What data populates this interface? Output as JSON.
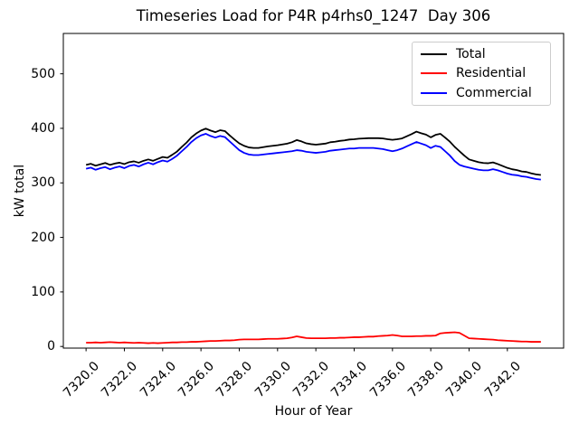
{
  "figure": {
    "background": "#ffffff",
    "axes_color": "#000000"
  },
  "chart_data": {
    "type": "line",
    "title": "Timeseries Load for P4R p4rhs0_1247  Day 306",
    "xlabel": "Hour of Year",
    "ylabel": "kW total",
    "xlim": [
      7318.8125,
      7344.9375
    ],
    "ylim": [
      -3,
      574
    ],
    "grid": false,
    "xticks": {
      "values": [
        7320,
        7322,
        7324,
        7326,
        7328,
        7330,
        7332,
        7334,
        7336,
        7338,
        7340,
        7342
      ],
      "labels": [
        "7320.0",
        "7322.0",
        "7324.0",
        "7326.0",
        "7328.0",
        "7330.0",
        "7332.0",
        "7334.0",
        "7336.0",
        "7338.0",
        "7340.0",
        "7342.0"
      ],
      "rotation": 45
    },
    "yticks": {
      "values": [
        0,
        100,
        200,
        300,
        400,
        500
      ],
      "labels": [
        "0",
        "100",
        "200",
        "300",
        "400",
        "500"
      ]
    },
    "legend": {
      "position": "upper right",
      "edge_color": "#cccccc",
      "entries": [
        "Total",
        "Residential",
        "Commercial"
      ]
    },
    "x": [
      7320.0,
      7320.25,
      7320.5,
      7320.75,
      7321.0,
      7321.25,
      7321.5,
      7321.75,
      7322.0,
      7322.25,
      7322.5,
      7322.75,
      7323.0,
      7323.25,
      7323.5,
      7323.75,
      7324.0,
      7324.25,
      7324.5,
      7324.75,
      7325.0,
      7325.25,
      7325.5,
      7325.75,
      7326.0,
      7326.25,
      7326.5,
      7326.75,
      7327.0,
      7327.25,
      7327.5,
      7327.75,
      7328.0,
      7328.25,
      7328.5,
      7328.75,
      7329.0,
      7329.25,
      7329.5,
      7329.75,
      7330.0,
      7330.25,
      7330.5,
      7330.75,
      7331.0,
      7331.25,
      7331.5,
      7331.75,
      7332.0,
      7332.25,
      7332.5,
      7332.75,
      7333.0,
      7333.25,
      7333.5,
      7333.75,
      7334.0,
      7334.25,
      7334.5,
      7334.75,
      7335.0,
      7335.25,
      7335.5,
      7335.75,
      7336.0,
      7336.25,
      7336.5,
      7336.75,
      7337.0,
      7337.25,
      7337.5,
      7337.75,
      7338.0,
      7338.25,
      7338.5,
      7338.75,
      7339.0,
      7339.25,
      7339.5,
      7339.75,
      7340.0,
      7340.25,
      7340.5,
      7340.75,
      7341.0,
      7341.25,
      7341.5,
      7341.75,
      7342.0,
      7342.25,
      7342.5,
      7342.75,
      7343.0,
      7343.25,
      7343.5,
      7343.75
    ],
    "series": [
      {
        "name": "Total",
        "color": "#000000",
        "values": [
          333,
          335,
          331.5,
          334,
          336.5,
          333,
          335.5,
          337,
          334.5,
          338,
          339.5,
          337,
          340.5,
          343,
          340.5,
          344,
          347.5,
          346,
          351.5,
          357.5,
          366,
          374,
          383.5,
          390.5,
          396,
          399.5,
          396,
          393,
          396.5,
          395,
          387,
          379.5,
          372.5,
          368,
          365,
          364,
          364,
          365.5,
          367,
          368,
          369,
          370.5,
          372,
          374.5,
          378.5,
          376,
          372.5,
          371,
          370,
          371,
          372,
          374.5,
          375.5,
          377,
          378,
          379.5,
          380,
          381,
          381.5,
          382,
          382,
          382,
          381.5,
          380,
          379,
          380,
          381.5,
          385.5,
          389.5,
          394,
          391,
          388.5,
          383.5,
          388,
          390,
          383,
          375.5,
          366,
          358,
          350,
          343,
          340.5,
          338,
          336.5,
          336,
          337.5,
          334.5,
          331,
          327.5,
          325,
          323.5,
          321,
          320,
          317.5,
          315.5,
          314.5
        ]
      },
      {
        "name": "Residential",
        "color": "#ff0000",
        "values": [
          7,
          7,
          7.5,
          7,
          7.5,
          8,
          7.5,
          7,
          7.5,
          7,
          6.5,
          7,
          6.5,
          6,
          6.5,
          6,
          6.5,
          7,
          7.5,
          7.5,
          8,
          8,
          8.5,
          8.5,
          9,
          9.5,
          10,
          10,
          10.5,
          11,
          11,
          11.5,
          12.5,
          13,
          13,
          13,
          13,
          13.5,
          14,
          14,
          14,
          14.5,
          15,
          16.5,
          18.5,
          17,
          15.5,
          15,
          15,
          15,
          15,
          15.5,
          15.5,
          16,
          16,
          16.5,
          17,
          17,
          17.5,
          18,
          18,
          19,
          19.5,
          20,
          21,
          20,
          18.5,
          18.5,
          18.5,
          19,
          19,
          19.5,
          19.5,
          20,
          24,
          25,
          25.5,
          26,
          25,
          20,
          15,
          14.5,
          14,
          13.5,
          13,
          12.5,
          11.5,
          11,
          10.5,
          10,
          9.5,
          9,
          9,
          8.5,
          8.5,
          8.5
        ]
      },
      {
        "name": "Commercial",
        "color": "#0000ff",
        "values": [
          326,
          328,
          324,
          327,
          329,
          325,
          328,
          330,
          327,
          331,
          333,
          330,
          334,
          337,
          334,
          338,
          341,
          339,
          344,
          350,
          358,
          366,
          375,
          382,
          387,
          390,
          386,
          383,
          386,
          384,
          376,
          368,
          360,
          355,
          352,
          351,
          351,
          352,
          353,
          354,
          355,
          356,
          357,
          358,
          360,
          359,
          357,
          356,
          355,
          356,
          357,
          359,
          360,
          361,
          362,
          363,
          363,
          364,
          364,
          364,
          364,
          363,
          362,
          360,
          358,
          360,
          363,
          367,
          371,
          375,
          372,
          369,
          364,
          368,
          366,
          358,
          350,
          340,
          333,
          330,
          328,
          326,
          324,
          323,
          323,
          325,
          323,
          320,
          317,
          315,
          314,
          312,
          311,
          309,
          307,
          306
        ]
      }
    ]
  }
}
